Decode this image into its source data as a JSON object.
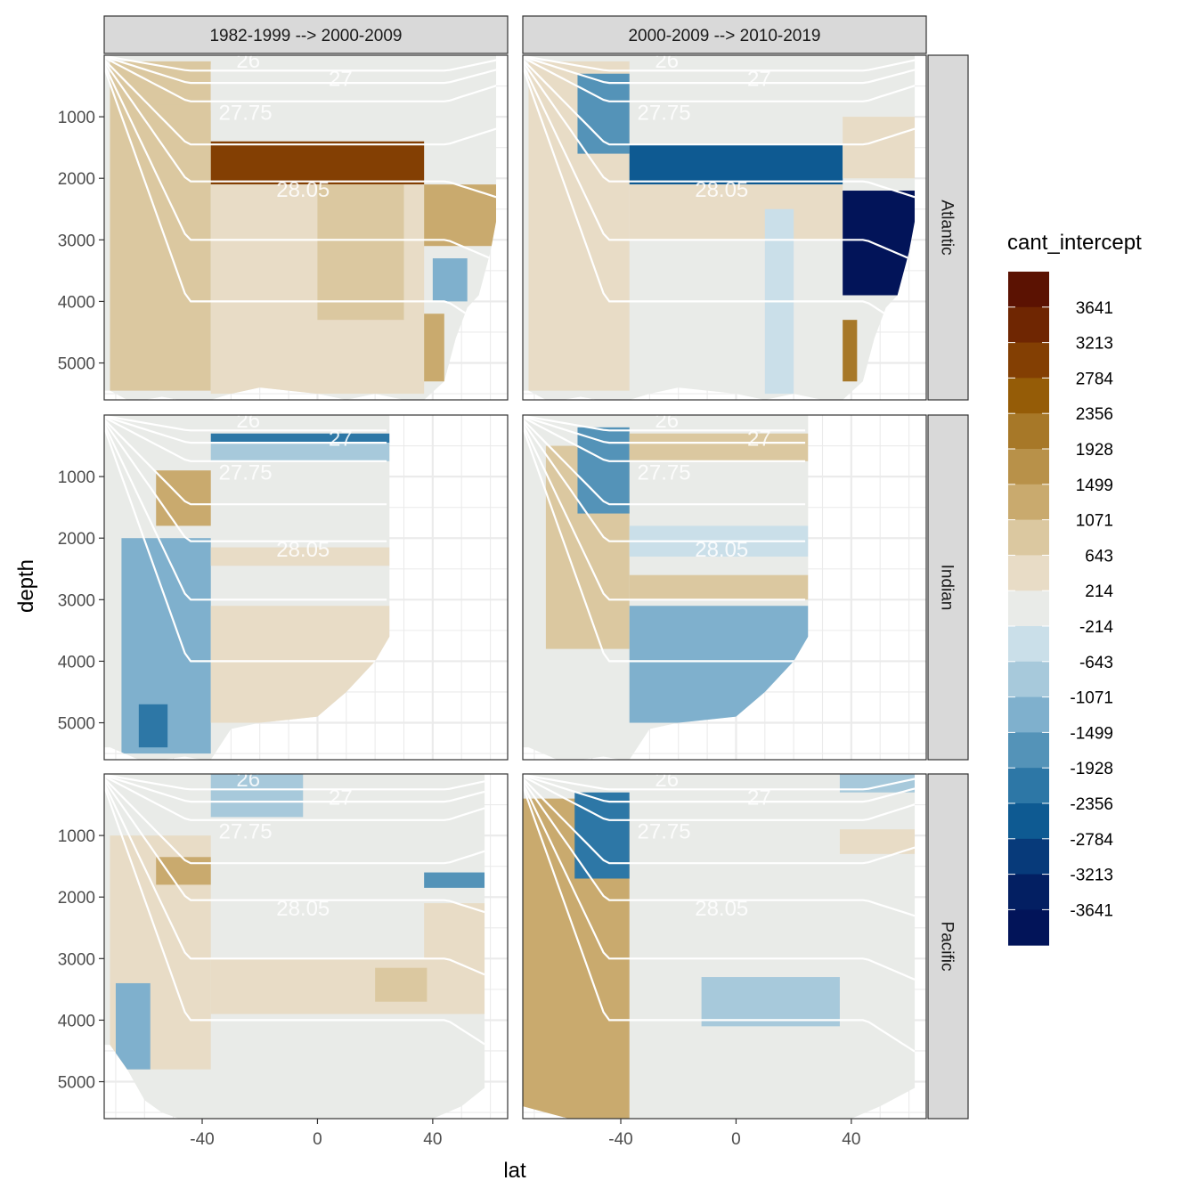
{
  "chart_data": {
    "type": "heatmap",
    "title": "",
    "xlabel": "lat",
    "ylabel": "depth",
    "xlim": [
      -74,
      66
    ],
    "ylim": [
      0,
      5600
    ],
    "x_ticks": [
      -40,
      0,
      40
    ],
    "y_ticks": [
      1000,
      2000,
      3000,
      4000,
      5000
    ],
    "y_reversed": true,
    "grid": true,
    "columns": [
      "1982-1999 --> 2000-2009",
      "2000-2009 --> 2010-2019"
    ],
    "rows": [
      "Atlantic",
      "Indian",
      "Pacific"
    ],
    "legend": {
      "title": "cant_intercept",
      "position": "right",
      "labels": [
        "3641",
        "3213",
        "2784",
        "2356",
        "1928",
        "1499",
        "1071",
        "643",
        "214",
        "-214",
        "-643",
        "-1071",
        "-1499",
        "-1928",
        "-2356",
        "-2784",
        "-3213",
        "-3641"
      ],
      "colors": [
        "#5b1202",
        "#6f2602",
        "#833f03",
        "#955c07",
        "#a77828",
        "#b89149",
        "#c9aa6e",
        "#dbc8a0",
        "#e8dcc6",
        "#e9ebe8",
        "#cadfe9",
        "#a7c9db",
        "#7fb0cd",
        "#5493b8",
        "#2d77a6",
        "#0e5a92",
        "#073a7a",
        "#031f62",
        "#021459"
      ]
    },
    "isopycnal_labels": [
      "26",
      "27",
      "27.75",
      "28.05"
    ],
    "panels": [
      {
        "row": "Atlantic",
        "col": "1982-1999 --> 2000-2009",
        "lat_max": 62,
        "bottom": [
          [
            -72,
            5450
          ],
          [
            -66,
            5600
          ],
          [
            -60,
            5600
          ],
          [
            -54,
            5550
          ],
          [
            -48,
            5600
          ],
          [
            -42,
            5600
          ],
          [
            -37,
            5600
          ],
          [
            -30,
            5500
          ],
          [
            -20,
            5400
          ],
          [
            -10,
            5450
          ],
          [
            0,
            5500
          ],
          [
            10,
            5600
          ],
          [
            20,
            5500
          ],
          [
            30,
            5600
          ],
          [
            37,
            5600
          ],
          [
            44,
            5300
          ],
          [
            48,
            4600
          ],
          [
            52,
            4100
          ],
          [
            56,
            3900
          ],
          [
            60,
            3200
          ],
          [
            62,
            2700
          ]
        ],
        "bands": [
          {
            "lat": [
              -72,
              -37
            ],
            "dmin": 100,
            "dmax": 5450,
            "value": 900
          },
          {
            "lat": [
              -60,
              -40
            ],
            "dmin": 800,
            "dmax": 5000,
            "value": 1100
          },
          {
            "lat": [
              -37,
              37
            ],
            "dmin": 1400,
            "dmax": 2100,
            "value": 3400
          },
          {
            "lat": [
              -37,
              37
            ],
            "dmin": 2100,
            "dmax": 5500,
            "value": 600
          },
          {
            "lat": [
              -37,
              37
            ],
            "dmin": 150,
            "dmax": 900,
            "value": 400
          },
          {
            "lat": [
              0,
              30
            ],
            "dmin": 2100,
            "dmax": 4300,
            "value": 1100
          },
          {
            "lat": [
              37,
              62
            ],
            "dmin": 2100,
            "dmax": 3100,
            "value": 1500
          },
          {
            "lat": [
              40,
              52
            ],
            "dmin": 3300,
            "dmax": 4000,
            "value": -900
          },
          {
            "lat": [
              37,
              44
            ],
            "dmin": 4200,
            "dmax": 5300,
            "value": 1500
          }
        ]
      },
      {
        "row": "Atlantic",
        "col": "2000-2009 --> 2010-2019",
        "lat_max": 62,
        "bottom": [
          [
            -72,
            5450
          ],
          [
            -66,
            5600
          ],
          [
            -60,
            5600
          ],
          [
            -54,
            5550
          ],
          [
            -48,
            5600
          ],
          [
            -42,
            5600
          ],
          [
            -37,
            5600
          ],
          [
            -30,
            5500
          ],
          [
            -20,
            5400
          ],
          [
            -10,
            5450
          ],
          [
            0,
            5500
          ],
          [
            10,
            5600
          ],
          [
            20,
            5500
          ],
          [
            30,
            5600
          ],
          [
            37,
            5600
          ],
          [
            44,
            5300
          ],
          [
            48,
            4600
          ],
          [
            52,
            4100
          ],
          [
            56,
            3900
          ],
          [
            60,
            3200
          ],
          [
            62,
            2700
          ]
        ],
        "bands": [
          {
            "lat": [
              -72,
              -37
            ],
            "dmin": 100,
            "dmax": 5450,
            "value": 700
          },
          {
            "lat": [
              -55,
              -37
            ],
            "dmin": 300,
            "dmax": 1600,
            "value": -1600
          },
          {
            "lat": [
              -37,
              37
            ],
            "dmin": 1450,
            "dmax": 2100,
            "value": -2300
          },
          {
            "lat": [
              -37,
              37
            ],
            "dmin": 2100,
            "dmax": 3000,
            "value": 600
          },
          {
            "lat": [
              37,
              62
            ],
            "dmin": 2200,
            "dmax": 3900,
            "value": -3600
          },
          {
            "lat": [
              37,
              62
            ],
            "dmin": 1000,
            "dmax": 2000,
            "value": 500
          },
          {
            "lat": [
              37,
              42
            ],
            "dmin": 4300,
            "dmax": 5300,
            "value": 2400
          },
          {
            "lat": [
              10,
              20
            ],
            "dmin": 2500,
            "dmax": 5500,
            "value": -400
          }
        ]
      },
      {
        "row": "Indian",
        "col": "1982-1999 --> 2000-2009",
        "lat_max": 25,
        "bottom": [
          [
            -72,
            5400
          ],
          [
            -62,
            5600
          ],
          [
            -54,
            5600
          ],
          [
            -46,
            5550
          ],
          [
            -40,
            5600
          ],
          [
            -37,
            5600
          ],
          [
            -30,
            5100
          ],
          [
            -20,
            5000
          ],
          [
            -10,
            4950
          ],
          [
            0,
            4900
          ],
          [
            10,
            4500
          ],
          [
            20,
            4000
          ],
          [
            25,
            3600
          ]
        ],
        "bands": [
          {
            "lat": [
              -68,
              -37
            ],
            "dmin": 2000,
            "dmax": 5500,
            "value": -1200
          },
          {
            "lat": [
              -62,
              -52
            ],
            "dmin": 4700,
            "dmax": 5400,
            "value": -1900
          },
          {
            "lat": [
              -37,
              25
            ],
            "dmin": 3100,
            "dmax": 5000,
            "value": 550
          },
          {
            "lat": [
              -37,
              25
            ],
            "dmin": 2150,
            "dmax": 2450,
            "value": 600
          },
          {
            "lat": [
              -37,
              25
            ],
            "dmin": 300,
            "dmax": 450,
            "value": -1900
          },
          {
            "lat": [
              -37,
              25
            ],
            "dmin": 450,
            "dmax": 750,
            "value": -500
          },
          {
            "lat": [
              -56,
              -37
            ],
            "dmin": 900,
            "dmax": 1800,
            "value": 1300
          }
        ]
      },
      {
        "row": "Indian",
        "col": "2000-2009 --> 2010-2019",
        "lat_max": 25,
        "bottom": [
          [
            -72,
            5400
          ],
          [
            -62,
            5600
          ],
          [
            -54,
            5600
          ],
          [
            -46,
            5550
          ],
          [
            -40,
            5600
          ],
          [
            -37,
            5600
          ],
          [
            -30,
            5100
          ],
          [
            -20,
            5000
          ],
          [
            -10,
            4950
          ],
          [
            0,
            4900
          ],
          [
            10,
            4500
          ],
          [
            20,
            4000
          ],
          [
            25,
            3600
          ]
        ],
        "bands": [
          {
            "lat": [
              -66,
              -37
            ],
            "dmin": 500,
            "dmax": 3800,
            "value": 1200
          },
          {
            "lat": [
              -55,
              -37
            ],
            "dmin": 200,
            "dmax": 1600,
            "value": -1700
          },
          {
            "lat": [
              -37,
              25
            ],
            "dmin": 3100,
            "dmax": 5000,
            "value": -1200
          },
          {
            "lat": [
              -37,
              25
            ],
            "dmin": 2600,
            "dmax": 3000,
            "value": 1000
          },
          {
            "lat": [
              -37,
              25
            ],
            "dmin": 1800,
            "dmax": 2300,
            "value": -400
          },
          {
            "lat": [
              -37,
              25
            ],
            "dmin": 300,
            "dmax": 750,
            "value": 900
          }
        ]
      },
      {
        "row": "Pacific",
        "col": "1982-1999 --> 2000-2009",
        "lat_max": 58,
        "bottom": [
          [
            -72,
            4400
          ],
          [
            -66,
            4800
          ],
          [
            -60,
            5300
          ],
          [
            -54,
            5500
          ],
          [
            -48,
            5600
          ],
          [
            -42,
            5600
          ],
          [
            -37,
            5600
          ],
          [
            -20,
            5600
          ],
          [
            0,
            5600
          ],
          [
            20,
            5600
          ],
          [
            40,
            5600
          ],
          [
            50,
            5400
          ],
          [
            58,
            5100
          ]
        ],
        "bands": [
          {
            "lat": [
              -72,
              -37
            ],
            "dmin": 1000,
            "dmax": 4800,
            "value": 500
          },
          {
            "lat": [
              -70,
              -58
            ],
            "dmin": 3400,
            "dmax": 4800,
            "value": -1000
          },
          {
            "lat": [
              -56,
              -37
            ],
            "dmin": 1350,
            "dmax": 1800,
            "value": 1700
          },
          {
            "lat": [
              -37,
              58
            ],
            "dmin": 3000,
            "dmax": 3900,
            "value": 700
          },
          {
            "lat": [
              20,
              38
            ],
            "dmin": 3150,
            "dmax": 3700,
            "value": 1100
          },
          {
            "lat": [
              37,
              58
            ],
            "dmin": 1600,
            "dmax": 1850,
            "value": -1600
          },
          {
            "lat": [
              37,
              58
            ],
            "dmin": 2100,
            "dmax": 3100,
            "value": 500
          },
          {
            "lat": [
              -37,
              -5
            ],
            "dmin": 0,
            "dmax": 700,
            "value": -500
          }
        ]
      },
      {
        "row": "Pacific",
        "col": "2000-2009 --> 2010-2019",
        "lat_max": 62,
        "bottom": [
          [
            -74,
            5400
          ],
          [
            -66,
            5500
          ],
          [
            -58,
            5600
          ],
          [
            -50,
            5600
          ],
          [
            -42,
            5600
          ],
          [
            -37,
            5600
          ],
          [
            -20,
            5600
          ],
          [
            0,
            5600
          ],
          [
            20,
            5600
          ],
          [
            40,
            5600
          ],
          [
            50,
            5400
          ],
          [
            62,
            5100
          ]
        ],
        "bands": [
          {
            "lat": [
              -74,
              -37
            ],
            "dmin": 400,
            "dmax": 5600,
            "value": 1300
          },
          {
            "lat": [
              -56,
              -37
            ],
            "dmin": 300,
            "dmax": 1700,
            "value": -1900
          },
          {
            "lat": [
              -12,
              36
            ],
            "dmin": 3300,
            "dmax": 4100,
            "value": -500
          },
          {
            "lat": [
              36,
              62
            ],
            "dmin": 900,
            "dmax": 1300,
            "value": 550
          },
          {
            "lat": [
              36,
              62
            ],
            "dmin": 0,
            "dmax": 300,
            "value": -500
          }
        ]
      }
    ]
  }
}
